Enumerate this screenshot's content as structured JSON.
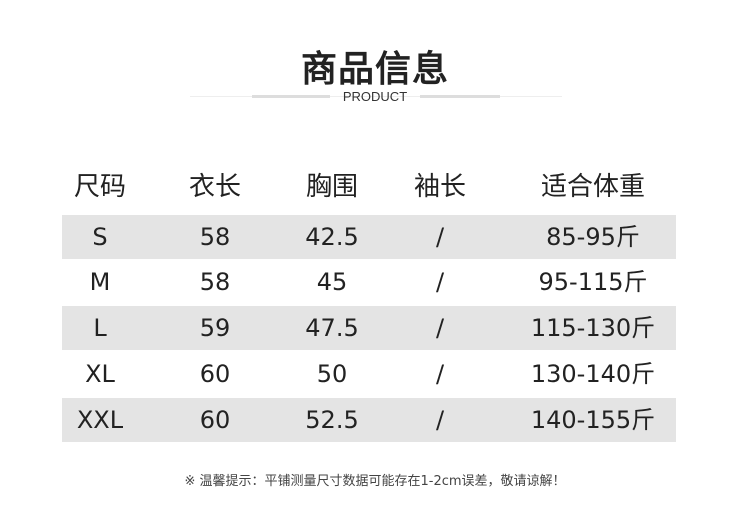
{
  "header": {
    "title": "商品信息",
    "subtitle": "PRODUCT"
  },
  "table": {
    "columns": [
      "尺码",
      "衣长",
      "胸围",
      "袖长",
      "适合体重"
    ],
    "rows": [
      [
        "S",
        "58",
        "42.5",
        "/",
        "85-95斤"
      ],
      [
        "M",
        "58",
        "45",
        "/",
        "95-115斤"
      ],
      [
        "L",
        "59",
        "47.5",
        "/",
        "115-130斤"
      ],
      [
        "XL",
        "60",
        "50",
        "/",
        "130-140斤"
      ],
      [
        "XXL",
        "60",
        "52.5",
        "/",
        "140-155斤"
      ]
    ]
  },
  "note": "※ 温馨提示：平铺测量尺寸数据可能存在1-2cm误差，敬请谅解！"
}
